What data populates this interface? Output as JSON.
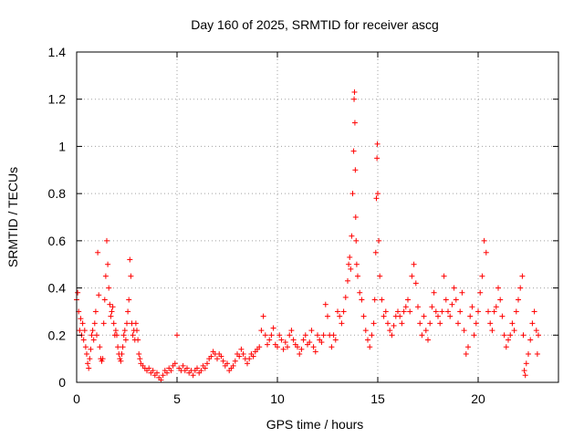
{
  "chart_data": {
    "type": "scatter",
    "title": "Day 160 of 2025, SRMTID for receiver ascg",
    "xlabel": "GPS time / hours",
    "ylabel": "SRMTID / TECUs",
    "xlim": [
      0,
      24
    ],
    "ylim": [
      0,
      1.4
    ],
    "xticks": [
      "0",
      "5",
      "10",
      "15",
      "20"
    ],
    "yticks": [
      "0",
      "0.2",
      "0.4",
      "0.6",
      "0.8",
      "1",
      "1.2",
      "1.4"
    ],
    "grid": true,
    "marker": "+",
    "color": "#ff0000",
    "series": [
      {
        "name": "ascg",
        "points": [
          [
            0.0,
            0.35
          ],
          [
            0.05,
            0.38
          ],
          [
            0.1,
            0.3
          ],
          [
            0.15,
            0.22
          ],
          [
            0.2,
            0.27
          ],
          [
            0.25,
            0.2
          ],
          [
            0.3,
            0.25
          ],
          [
            0.35,
            0.18
          ],
          [
            0.4,
            0.22
          ],
          [
            0.45,
            0.15
          ],
          [
            0.5,
            0.12
          ],
          [
            0.55,
            0.08
          ],
          [
            0.6,
            0.06
          ],
          [
            0.65,
            0.1
          ],
          [
            0.7,
            0.14
          ],
          [
            0.75,
            0.2
          ],
          [
            0.8,
            0.22
          ],
          [
            0.85,
            0.18
          ],
          [
            0.9,
            0.25
          ],
          [
            0.95,
            0.3
          ],
          [
            1.0,
            0.2
          ],
          [
            1.05,
            0.55
          ],
          [
            1.1,
            0.37
          ],
          [
            1.15,
            0.15
          ],
          [
            1.2,
            0.1
          ],
          [
            1.25,
            0.09
          ],
          [
            1.3,
            0.1
          ],
          [
            1.35,
            0.25
          ],
          [
            1.4,
            0.35
          ],
          [
            1.45,
            0.45
          ],
          [
            1.5,
            0.6
          ],
          [
            1.55,
            0.5
          ],
          [
            1.6,
            0.4
          ],
          [
            1.65,
            0.33
          ],
          [
            1.7,
            0.28
          ],
          [
            1.75,
            0.3
          ],
          [
            1.8,
            0.32
          ],
          [
            1.85,
            0.25
          ],
          [
            1.9,
            0.2
          ],
          [
            1.95,
            0.22
          ],
          [
            2.0,
            0.2
          ],
          [
            2.05,
            0.15
          ],
          [
            2.1,
            0.12
          ],
          [
            2.15,
            0.1
          ],
          [
            2.2,
            0.09
          ],
          [
            2.25,
            0.12
          ],
          [
            2.3,
            0.15
          ],
          [
            2.35,
            0.2
          ],
          [
            2.4,
            0.22
          ],
          [
            2.45,
            0.18
          ],
          [
            2.5,
            0.25
          ],
          [
            2.55,
            0.3
          ],
          [
            2.6,
            0.35
          ],
          [
            2.65,
            0.52
          ],
          [
            2.7,
            0.45
          ],
          [
            2.75,
            0.25
          ],
          [
            2.8,
            0.2
          ],
          [
            2.85,
            0.22
          ],
          [
            2.9,
            0.18
          ],
          [
            2.95,
            0.25
          ],
          [
            3.0,
            0.22
          ],
          [
            3.05,
            0.18
          ],
          [
            3.1,
            0.12
          ],
          [
            3.15,
            0.1
          ],
          [
            3.2,
            0.08
          ],
          [
            3.3,
            0.07
          ],
          [
            3.4,
            0.06
          ],
          [
            3.5,
            0.05
          ],
          [
            3.6,
            0.06
          ],
          [
            3.7,
            0.04
          ],
          [
            3.8,
            0.05
          ],
          [
            3.9,
            0.03
          ],
          [
            4.0,
            0.04
          ],
          [
            4.1,
            0.02
          ],
          [
            4.2,
            0.01
          ],
          [
            4.3,
            0.03
          ],
          [
            4.4,
            0.05
          ],
          [
            4.5,
            0.04
          ],
          [
            4.6,
            0.06
          ],
          [
            4.7,
            0.05
          ],
          [
            4.8,
            0.07
          ],
          [
            4.9,
            0.08
          ],
          [
            5.0,
            0.2
          ],
          [
            5.1,
            0.06
          ],
          [
            5.2,
            0.05
          ],
          [
            5.3,
            0.07
          ],
          [
            5.4,
            0.05
          ],
          [
            5.5,
            0.06
          ],
          [
            5.6,
            0.04
          ],
          [
            5.7,
            0.05
          ],
          [
            5.8,
            0.03
          ],
          [
            5.9,
            0.05
          ],
          [
            6.0,
            0.06
          ],
          [
            6.1,
            0.04
          ],
          [
            6.2,
            0.05
          ],
          [
            6.3,
            0.07
          ],
          [
            6.4,
            0.06
          ],
          [
            6.5,
            0.08
          ],
          [
            6.6,
            0.1
          ],
          [
            6.7,
            0.11
          ],
          [
            6.8,
            0.13
          ],
          [
            6.9,
            0.12
          ],
          [
            7.0,
            0.1
          ],
          [
            7.1,
            0.12
          ],
          [
            7.2,
            0.11
          ],
          [
            7.3,
            0.09
          ],
          [
            7.4,
            0.07
          ],
          [
            7.5,
            0.08
          ],
          [
            7.6,
            0.05
          ],
          [
            7.7,
            0.06
          ],
          [
            7.8,
            0.07
          ],
          [
            7.9,
            0.09
          ],
          [
            8.0,
            0.12
          ],
          [
            8.1,
            0.11
          ],
          [
            8.2,
            0.14
          ],
          [
            8.3,
            0.12
          ],
          [
            8.4,
            0.1
          ],
          [
            8.5,
            0.08
          ],
          [
            8.6,
            0.1
          ],
          [
            8.7,
            0.12
          ],
          [
            8.8,
            0.11
          ],
          [
            8.9,
            0.13
          ],
          [
            9.0,
            0.14
          ],
          [
            9.1,
            0.15
          ],
          [
            9.2,
            0.22
          ],
          [
            9.3,
            0.28
          ],
          [
            9.4,
            0.2
          ],
          [
            9.5,
            0.16
          ],
          [
            9.6,
            0.18
          ],
          [
            9.7,
            0.2
          ],
          [
            9.8,
            0.23
          ],
          [
            9.9,
            0.16
          ],
          [
            10.0,
            0.15
          ],
          [
            10.1,
            0.2
          ],
          [
            10.2,
            0.18
          ],
          [
            10.3,
            0.14
          ],
          [
            10.4,
            0.17
          ],
          [
            10.5,
            0.15
          ],
          [
            10.6,
            0.2
          ],
          [
            10.7,
            0.22
          ],
          [
            10.8,
            0.18
          ],
          [
            10.9,
            0.16
          ],
          [
            11.0,
            0.15
          ],
          [
            11.1,
            0.12
          ],
          [
            11.2,
            0.14
          ],
          [
            11.3,
            0.18
          ],
          [
            11.4,
            0.2
          ],
          [
            11.5,
            0.16
          ],
          [
            11.6,
            0.17
          ],
          [
            11.7,
            0.22
          ],
          [
            11.8,
            0.15
          ],
          [
            11.9,
            0.13
          ],
          [
            12.0,
            0.2
          ],
          [
            12.1,
            0.18
          ],
          [
            12.2,
            0.17
          ],
          [
            12.3,
            0.2
          ],
          [
            12.4,
            0.33
          ],
          [
            12.5,
            0.28
          ],
          [
            12.6,
            0.2
          ],
          [
            12.7,
            0.15
          ],
          [
            12.8,
            0.2
          ],
          [
            12.9,
            0.18
          ],
          [
            13.0,
            0.3
          ],
          [
            13.1,
            0.28
          ],
          [
            13.2,
            0.25
          ],
          [
            13.3,
            0.3
          ],
          [
            13.4,
            0.36
          ],
          [
            13.5,
            0.43
          ],
          [
            13.55,
            0.5
          ],
          [
            13.6,
            0.53
          ],
          [
            13.65,
            0.48
          ],
          [
            13.7,
            0.62
          ],
          [
            13.75,
            0.8
          ],
          [
            13.8,
            0.98
          ],
          [
            13.82,
            1.2
          ],
          [
            13.84,
            1.23
          ],
          [
            13.86,
            1.1
          ],
          [
            13.88,
            0.9
          ],
          [
            13.9,
            0.7
          ],
          [
            13.92,
            0.6
          ],
          [
            13.95,
            0.5
          ],
          [
            14.0,
            0.45
          ],
          [
            14.1,
            0.38
          ],
          [
            14.2,
            0.35
          ],
          [
            14.3,
            0.28
          ],
          [
            14.4,
            0.22
          ],
          [
            14.5,
            0.18
          ],
          [
            14.6,
            0.15
          ],
          [
            14.7,
            0.2
          ],
          [
            14.8,
            0.25
          ],
          [
            14.85,
            0.35
          ],
          [
            14.9,
            0.55
          ],
          [
            14.93,
            0.78
          ],
          [
            14.96,
            0.95
          ],
          [
            14.98,
            1.01
          ],
          [
            15.0,
            0.8
          ],
          [
            15.05,
            0.6
          ],
          [
            15.1,
            0.45
          ],
          [
            15.2,
            0.35
          ],
          [
            15.3,
            0.28
          ],
          [
            15.4,
            0.3
          ],
          [
            15.5,
            0.25
          ],
          [
            15.6,
            0.22
          ],
          [
            15.7,
            0.2
          ],
          [
            15.8,
            0.24
          ],
          [
            15.9,
            0.28
          ],
          [
            16.0,
            0.3
          ],
          [
            16.1,
            0.28
          ],
          [
            16.2,
            0.25
          ],
          [
            16.3,
            0.3
          ],
          [
            16.4,
            0.32
          ],
          [
            16.5,
            0.35
          ],
          [
            16.6,
            0.3
          ],
          [
            16.7,
            0.45
          ],
          [
            16.8,
            0.5
          ],
          [
            16.9,
            0.42
          ],
          [
            17.0,
            0.32
          ],
          [
            17.1,
            0.25
          ],
          [
            17.2,
            0.2
          ],
          [
            17.3,
            0.28
          ],
          [
            17.4,
            0.22
          ],
          [
            17.5,
            0.18
          ],
          [
            17.6,
            0.25
          ],
          [
            17.7,
            0.32
          ],
          [
            17.8,
            0.38
          ],
          [
            17.9,
            0.3
          ],
          [
            18.0,
            0.28
          ],
          [
            18.1,
            0.25
          ],
          [
            18.2,
            0.3
          ],
          [
            18.3,
            0.45
          ],
          [
            18.4,
            0.35
          ],
          [
            18.5,
            0.3
          ],
          [
            18.6,
            0.28
          ],
          [
            18.7,
            0.33
          ],
          [
            18.8,
            0.4
          ],
          [
            18.9,
            0.35
          ],
          [
            19.0,
            0.25
          ],
          [
            19.1,
            0.3
          ],
          [
            19.2,
            0.38
          ],
          [
            19.3,
            0.22
          ],
          [
            19.4,
            0.12
          ],
          [
            19.5,
            0.15
          ],
          [
            19.6,
            0.28
          ],
          [
            19.7,
            0.32
          ],
          [
            19.8,
            0.2
          ],
          [
            19.9,
            0.25
          ],
          [
            20.0,
            0.3
          ],
          [
            20.1,
            0.38
          ],
          [
            20.2,
            0.45
          ],
          [
            20.3,
            0.6
          ],
          [
            20.4,
            0.55
          ],
          [
            20.5,
            0.3
          ],
          [
            20.6,
            0.25
          ],
          [
            20.7,
            0.22
          ],
          [
            20.8,
            0.3
          ],
          [
            20.9,
            0.32
          ],
          [
            21.0,
            0.4
          ],
          [
            21.1,
            0.35
          ],
          [
            21.2,
            0.28
          ],
          [
            21.3,
            0.2
          ],
          [
            21.4,
            0.15
          ],
          [
            21.5,
            0.18
          ],
          [
            21.6,
            0.2
          ],
          [
            21.7,
            0.25
          ],
          [
            21.8,
            0.22
          ],
          [
            21.9,
            0.3
          ],
          [
            22.0,
            0.35
          ],
          [
            22.1,
            0.4
          ],
          [
            22.2,
            0.45
          ],
          [
            22.25,
            0.2
          ],
          [
            22.3,
            0.05
          ],
          [
            22.35,
            0.03
          ],
          [
            22.4,
            0.08
          ],
          [
            22.5,
            0.12
          ],
          [
            22.6,
            0.18
          ],
          [
            22.7,
            0.25
          ],
          [
            22.8,
            0.3
          ],
          [
            22.9,
            0.22
          ],
          [
            22.95,
            0.12
          ],
          [
            23.0,
            0.2
          ]
        ]
      }
    ]
  }
}
